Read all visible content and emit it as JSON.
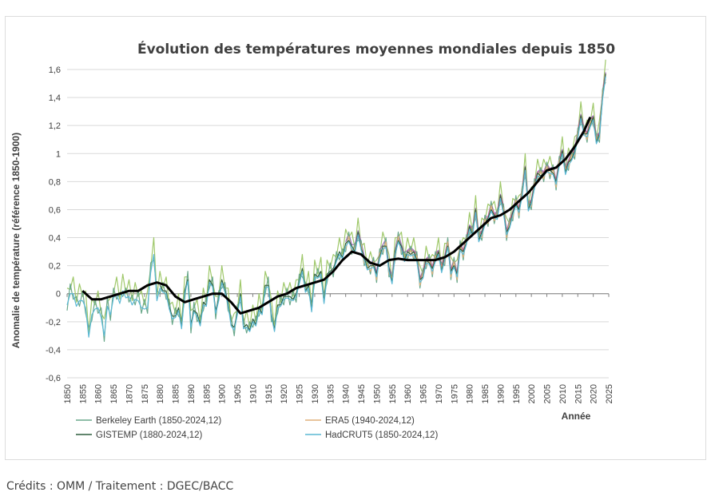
{
  "credits": "Crédits : OMM / Traitement : DGEC/BACC",
  "chart_data": {
    "type": "line",
    "title": "Évolution des températures moyennes mondiales depuis 1850",
    "xlabel": "Année",
    "ylabel": "Anomalie de température (référence 1850-1900)",
    "xlim": [
      1850,
      2025
    ],
    "ylim": [
      -0.6,
      1.6
    ],
    "x_ticks": [
      1850,
      1855,
      1860,
      1865,
      1870,
      1875,
      1880,
      1885,
      1890,
      1895,
      1900,
      1905,
      1910,
      1915,
      1920,
      1925,
      1930,
      1935,
      1940,
      1945,
      1950,
      1955,
      1960,
      1965,
      1970,
      1975,
      1980,
      1985,
      1990,
      1995,
      2000,
      2005,
      2010,
      2015,
      2020,
      2025
    ],
    "y_ticks": [
      -0.6,
      -0.4,
      -0.2,
      0,
      0.2,
      0.4,
      0.6,
      0.8,
      1,
      1.2,
      1.4,
      1.6
    ],
    "y_tick_labels": [
      "-0,6",
      "-0,4",
      "-0,2",
      "0",
      "0,2",
      "0,4",
      "0,6",
      "0,8",
      "1",
      "1,2",
      "1,4",
      "1,6"
    ],
    "grid": "horizontal",
    "legend_position": "bottom",
    "base_years": [
      1850,
      1851,
      1852,
      1853,
      1854,
      1855,
      1856,
      1857,
      1858,
      1859,
      1860,
      1861,
      1862,
      1863,
      1864,
      1865,
      1866,
      1867,
      1868,
      1869,
      1870,
      1871,
      1872,
      1873,
      1874,
      1875,
      1876,
      1877,
      1878,
      1879,
      1880,
      1881,
      1882,
      1883,
      1884,
      1885,
      1886,
      1887,
      1888,
      1889,
      1890,
      1891,
      1892,
      1893,
      1894,
      1895,
      1896,
      1897,
      1898,
      1899,
      1900,
      1901,
      1902,
      1903,
      1904,
      1905,
      1906,
      1907,
      1908,
      1909,
      1910,
      1911,
      1912,
      1913,
      1914,
      1915,
      1916,
      1917,
      1918,
      1919,
      1920,
      1921,
      1922,
      1923,
      1924,
      1925,
      1926,
      1927,
      1928,
      1929,
      1930,
      1931,
      1932,
      1933,
      1934,
      1935,
      1936,
      1937,
      1938,
      1939,
      1940,
      1941,
      1942,
      1943,
      1944,
      1945,
      1946,
      1947,
      1948,
      1949,
      1950,
      1951,
      1952,
      1953,
      1954,
      1955,
      1956,
      1957,
      1958,
      1959,
      1960,
      1961,
      1962,
      1963,
      1964,
      1965,
      1966,
      1967,
      1968,
      1969,
      1970,
      1971,
      1972,
      1973,
      1974,
      1975,
      1976,
      1977,
      1978,
      1979,
      1980,
      1981,
      1982,
      1983,
      1984,
      1985,
      1986,
      1987,
      1988,
      1989,
      1990,
      1991,
      1992,
      1993,
      1994,
      1995,
      1996,
      1997,
      1998,
      1999,
      2000,
      2001,
      2002,
      2003,
      2004,
      2005,
      2006,
      2007,
      2008,
      2009,
      2010,
      2011,
      2012,
      2013,
      2014,
      2015,
      2016,
      2017,
      2018,
      2019,
      2020,
      2021,
      2022,
      2023,
      2024
    ],
    "base_values": [
      -0.08,
      0.03,
      0.0,
      -0.06,
      -0.05,
      -0.02,
      -0.1,
      -0.28,
      -0.15,
      -0.08,
      -0.1,
      -0.14,
      -0.3,
      -0.06,
      -0.15,
      0.0,
      0.0,
      -0.04,
      0.02,
      0.0,
      -0.02,
      -0.05,
      -0.04,
      -0.02,
      -0.1,
      -0.08,
      -0.1,
      0.18,
      0.28,
      -0.02,
      0.04,
      0.04,
      0.0,
      -0.08,
      -0.18,
      -0.14,
      -0.12,
      -0.22,
      0.0,
      0.12,
      -0.24,
      -0.1,
      -0.16,
      -0.2,
      -0.08,
      -0.06,
      0.08,
      0.08,
      -0.14,
      -0.02,
      0.08,
      0.04,
      -0.08,
      -0.2,
      -0.26,
      -0.12,
      -0.02,
      -0.22,
      -0.24,
      -0.24,
      -0.2,
      -0.2,
      -0.12,
      -0.12,
      0.04,
      0.08,
      -0.16,
      -0.24,
      -0.1,
      -0.06,
      -0.04,
      0.0,
      -0.04,
      -0.02,
      -0.02,
      0.1,
      0.16,
      0.04,
      0.04,
      -0.1,
      0.12,
      0.14,
      0.14,
      -0.04,
      0.12,
      0.18,
      0.16,
      0.26,
      0.28,
      0.28,
      0.34,
      0.4,
      0.32,
      0.32,
      0.42,
      0.34,
      0.24,
      0.2,
      0.18,
      0.22,
      0.12,
      0.28,
      0.32,
      0.36,
      0.16,
      0.1,
      0.28,
      0.4,
      0.32,
      0.26,
      0.28,
      0.3,
      0.28,
      0.26,
      0.08,
      0.14,
      0.22,
      0.24,
      0.16,
      0.26,
      0.28,
      0.18,
      0.24,
      0.36,
      0.14,
      0.22,
      0.12,
      0.34,
      0.28,
      0.38,
      0.46,
      0.44,
      0.58,
      0.4,
      0.42,
      0.52,
      0.52,
      0.62,
      0.54,
      0.56,
      0.68,
      0.6,
      0.42,
      0.5,
      0.56,
      0.66,
      0.58,
      0.72,
      0.88,
      0.62,
      0.64,
      0.78,
      0.84,
      0.86,
      0.84,
      0.9,
      0.86,
      0.88,
      0.78,
      0.94,
      1.0,
      0.88,
      0.92,
      0.98,
      1.0,
      1.14,
      1.25,
      1.16,
      1.12,
      1.22,
      1.24,
      1.1,
      1.12,
      1.42,
      1.55
    ],
    "series": [
      {
        "name": "Berkeley Earth (1850-2024,12)",
        "color": "#6aa88b",
        "start": 1850,
        "offsets": [
          -0.04,
          0.04
        ]
      },
      {
        "name": "ERA5 (1940-2024,12)",
        "color": "#e0b07a",
        "start": 1940,
        "offsets": [
          -0.02,
          0.01
        ]
      },
      {
        "name": "GISTEMP (1880-2024,12)",
        "color": "#2f5f3e",
        "start": 1880,
        "offsets": [
          0.02,
          -0.02
        ]
      },
      {
        "name": "HadCRUT5 (1850-2024,12)",
        "color": "#5bb8d4",
        "start": 1850,
        "offsets": [
          0.0,
          -0.03
        ]
      }
    ],
    "extra_series": [
      {
        "color": "#9fc86a",
        "start": 1850,
        "offsets": [
          0.12,
          0.0
        ]
      },
      {
        "color": "#9c6fb5",
        "start": 1940,
        "offsets": [
          0.03,
          0.03
        ]
      },
      {
        "color": "#d9667c",
        "start": 1960,
        "offsets": [
          0.02,
          0.02
        ]
      }
    ],
    "trend": {
      "color": "#000000",
      "x": [
        1855,
        1858,
        1861,
        1864,
        1867,
        1870,
        1873,
        1876,
        1879,
        1882,
        1885,
        1888,
        1891,
        1894,
        1897,
        1900,
        1903,
        1906,
        1909,
        1912,
        1915,
        1918,
        1921,
        1924,
        1927,
        1930,
        1933,
        1936,
        1939,
        1942,
        1945,
        1948,
        1951,
        1954,
        1957,
        1960,
        1963,
        1966,
        1969,
        1972,
        1975,
        1978,
        1981,
        1984,
        1987,
        1990,
        1993,
        1996,
        1999,
        2002,
        2005,
        2008,
        2011,
        2014,
        2017,
        2019
      ],
      "y": [
        0.02,
        -0.04,
        -0.04,
        -0.02,
        0.0,
        0.02,
        0.02,
        0.06,
        0.08,
        0.06,
        -0.02,
        -0.06,
        -0.04,
        -0.02,
        0.0,
        0.0,
        -0.06,
        -0.14,
        -0.12,
        -0.1,
        -0.06,
        -0.02,
        0.0,
        0.04,
        0.06,
        0.08,
        0.1,
        0.16,
        0.24,
        0.3,
        0.28,
        0.22,
        0.2,
        0.24,
        0.25,
        0.24,
        0.24,
        0.24,
        0.24,
        0.26,
        0.3,
        0.36,
        0.42,
        0.48,
        0.54,
        0.56,
        0.6,
        0.66,
        0.72,
        0.8,
        0.88,
        0.9,
        0.96,
        1.05,
        1.16,
        1.26
      ]
    }
  }
}
